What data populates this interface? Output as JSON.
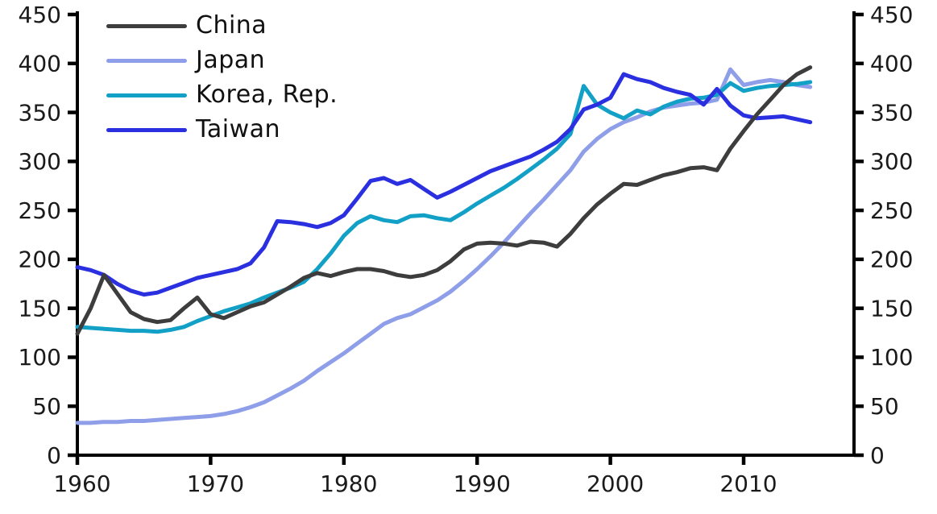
{
  "chart_data": {
    "type": "line",
    "title": "",
    "xlabel": "",
    "ylabel": "",
    "x": [
      1960,
      1961,
      1962,
      1963,
      1964,
      1965,
      1966,
      1967,
      1968,
      1969,
      1970,
      1971,
      1972,
      1973,
      1974,
      1975,
      1976,
      1977,
      1978,
      1979,
      1980,
      1981,
      1982,
      1983,
      1984,
      1985,
      1986,
      1987,
      1988,
      1989,
      1990,
      1991,
      1992,
      1993,
      1994,
      1995,
      1996,
      1997,
      1998,
      1999,
      2000,
      2001,
      2002,
      2003,
      2004,
      2005,
      2006,
      2007,
      2008,
      2009,
      2010,
      2011,
      2012,
      2013,
      2014,
      2015
    ],
    "series": [
      {
        "name": "Japan",
        "color": "#8e9ee8",
        "values": [
          33,
          33,
          34,
          34,
          35,
          35,
          36,
          37,
          38,
          39,
          40,
          42,
          45,
          49,
          54,
          61,
          68,
          76,
          86,
          95,
          104,
          114,
          124,
          134,
          140,
          144,
          151,
          158,
          167,
          178,
          190,
          203,
          217,
          232,
          247,
          261,
          276,
          291,
          310,
          323,
          333,
          340,
          345,
          351,
          355,
          357,
          359,
          360,
          363,
          394,
          378,
          381,
          383,
          381,
          378,
          376
        ]
      },
      {
        "name": "Korea, Rep.",
        "color": "#12a0c6",
        "values": [
          131,
          130,
          129,
          128,
          127,
          127,
          126,
          128,
          131,
          137,
          142,
          147,
          151,
          155,
          161,
          166,
          171,
          177,
          190,
          206,
          224,
          237,
          244,
          240,
          238,
          244,
          245,
          242,
          240,
          248,
          257,
          265,
          273,
          282,
          292,
          302,
          313,
          328,
          377,
          358,
          350,
          344,
          352,
          348,
          356,
          361,
          364,
          365,
          368,
          380,
          372,
          375,
          377,
          378,
          379,
          381
        ]
      },
      {
        "name": "Taiwan",
        "color": "#2a2fe0",
        "values": [
          192,
          189,
          184,
          175,
          168,
          164,
          166,
          171,
          176,
          181,
          184,
          187,
          190,
          196,
          212,
          239,
          238,
          236,
          233,
          237,
          245,
          262,
          280,
          283,
          277,
          281,
          272,
          263,
          269,
          276,
          283,
          290,
          295,
          300,
          305,
          312,
          320,
          333,
          353,
          358,
          365,
          389,
          384,
          381,
          375,
          371,
          368,
          358,
          374,
          357,
          347,
          344,
          345,
          346,
          343,
          340
        ]
      },
      {
        "name": "China",
        "color": "#3d3d3d",
        "values": [
          124,
          150,
          184,
          165,
          146,
          139,
          136,
          138,
          150,
          161,
          144,
          140,
          146,
          152,
          156,
          164,
          172,
          181,
          186,
          183,
          187,
          190,
          190,
          188,
          184,
          182,
          184,
          189,
          198,
          210,
          216,
          217,
          216,
          214,
          218,
          217,
          213,
          226,
          242,
          256,
          267,
          277,
          276,
          281,
          286,
          289,
          293,
          294,
          291,
          313,
          331,
          348,
          363,
          378,
          389,
          396
        ]
      }
    ],
    "legend": {
      "position": "top-left",
      "order": [
        "China",
        "Japan",
        "Korea, Rep.",
        "Taiwan"
      ]
    },
    "ylim": [
      0,
      450
    ],
    "yticks": [
      0,
      50,
      100,
      150,
      200,
      250,
      300,
      350,
      400,
      450
    ],
    "xticks": [
      1960,
      1970,
      1980,
      1990,
      2000,
      2010
    ],
    "dual_y_axis": true,
    "grid": false,
    "axis_color": "#000000",
    "tick_label_color": "#1a1a1a"
  }
}
